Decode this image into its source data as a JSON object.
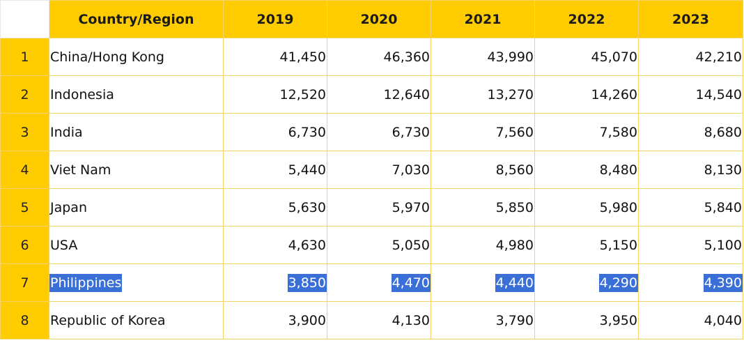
{
  "header": {
    "country_label": "Country/Region",
    "years": [
      "2019",
      "2020",
      "2021",
      "2022",
      "2023"
    ]
  },
  "rows": [
    {
      "rank": "1",
      "country": "China/Hong Kong",
      "values": [
        "41,450",
        "46,360",
        "43,990",
        "45,070",
        "42,210"
      ]
    },
    {
      "rank": "2",
      "country": "Indonesia",
      "values": [
        "12,520",
        "12,640",
        "13,270",
        "14,260",
        "14,540"
      ]
    },
    {
      "rank": "3",
      "country": "India",
      "values": [
        "6,730",
        "6,730",
        "7,560",
        "7,580",
        "8,680"
      ]
    },
    {
      "rank": "4",
      "country": "Viet Nam",
      "values": [
        "5,440",
        "7,030",
        "8,560",
        "8,480",
        "8,130"
      ]
    },
    {
      "rank": "5",
      "country": "Japan",
      "values": [
        "5,630",
        "5,970",
        "5,850",
        "5,980",
        "5,840"
      ]
    },
    {
      "rank": "6",
      "country": "USA",
      "values": [
        "4,630",
        "5,050",
        "4,980",
        "5,150",
        "5,100"
      ]
    },
    {
      "rank": "7",
      "country": "Philippines",
      "values": [
        "3,850",
        "4,470",
        "4,440",
        "4,290",
        "4,390"
      ],
      "selected": true
    },
    {
      "rank": "8",
      "country": "Republic of Korea",
      "values": [
        "3,900",
        "4,130",
        "3,790",
        "3,950",
        "4,040"
      ]
    }
  ],
  "colors": {
    "header_background": "#ffcc00",
    "grid_line": "#f3d46a",
    "selection": "#3a6fd8"
  }
}
